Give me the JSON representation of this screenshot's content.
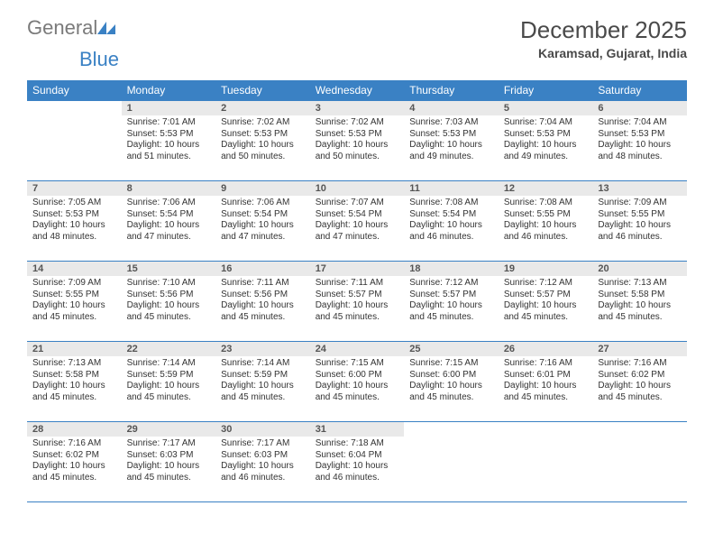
{
  "brand": {
    "word1": "General",
    "word2": "Blue",
    "logo_color": "#3a81c4",
    "word1_color": "#7a7a7a"
  },
  "title": "December 2025",
  "location": "Karamsad, Gujarat, India",
  "styling": {
    "background_color": "#ffffff",
    "header_bar_color": "#3a81c4",
    "header_text_color": "#ffffff",
    "daynum_bg": "#e9e9e9",
    "daynum_color": "#555555",
    "cell_border_color": "#3a81c4",
    "body_text_color": "#333333",
    "title_fontsize": 26,
    "location_fontsize": 14,
    "dayhead_fontsize": 12,
    "cell_fontsize": 10
  },
  "day_headers": [
    "Sunday",
    "Monday",
    "Tuesday",
    "Wednesday",
    "Thursday",
    "Friday",
    "Saturday"
  ],
  "weeks": [
    [
      {
        "n": "",
        "lines": [
          "",
          "",
          "",
          ""
        ]
      },
      {
        "n": "1",
        "lines": [
          "Sunrise: 7:01 AM",
          "Sunset: 5:53 PM",
          "Daylight: 10 hours",
          "and 51 minutes."
        ]
      },
      {
        "n": "2",
        "lines": [
          "Sunrise: 7:02 AM",
          "Sunset: 5:53 PM",
          "Daylight: 10 hours",
          "and 50 minutes."
        ]
      },
      {
        "n": "3",
        "lines": [
          "Sunrise: 7:02 AM",
          "Sunset: 5:53 PM",
          "Daylight: 10 hours",
          "and 50 minutes."
        ]
      },
      {
        "n": "4",
        "lines": [
          "Sunrise: 7:03 AM",
          "Sunset: 5:53 PM",
          "Daylight: 10 hours",
          "and 49 minutes."
        ]
      },
      {
        "n": "5",
        "lines": [
          "Sunrise: 7:04 AM",
          "Sunset: 5:53 PM",
          "Daylight: 10 hours",
          "and 49 minutes."
        ]
      },
      {
        "n": "6",
        "lines": [
          "Sunrise: 7:04 AM",
          "Sunset: 5:53 PM",
          "Daylight: 10 hours",
          "and 48 minutes."
        ]
      }
    ],
    [
      {
        "n": "7",
        "lines": [
          "Sunrise: 7:05 AM",
          "Sunset: 5:53 PM",
          "Daylight: 10 hours",
          "and 48 minutes."
        ]
      },
      {
        "n": "8",
        "lines": [
          "Sunrise: 7:06 AM",
          "Sunset: 5:54 PM",
          "Daylight: 10 hours",
          "and 47 minutes."
        ]
      },
      {
        "n": "9",
        "lines": [
          "Sunrise: 7:06 AM",
          "Sunset: 5:54 PM",
          "Daylight: 10 hours",
          "and 47 minutes."
        ]
      },
      {
        "n": "10",
        "lines": [
          "Sunrise: 7:07 AM",
          "Sunset: 5:54 PM",
          "Daylight: 10 hours",
          "and 47 minutes."
        ]
      },
      {
        "n": "11",
        "lines": [
          "Sunrise: 7:08 AM",
          "Sunset: 5:54 PM",
          "Daylight: 10 hours",
          "and 46 minutes."
        ]
      },
      {
        "n": "12",
        "lines": [
          "Sunrise: 7:08 AM",
          "Sunset: 5:55 PM",
          "Daylight: 10 hours",
          "and 46 minutes."
        ]
      },
      {
        "n": "13",
        "lines": [
          "Sunrise: 7:09 AM",
          "Sunset: 5:55 PM",
          "Daylight: 10 hours",
          "and 46 minutes."
        ]
      }
    ],
    [
      {
        "n": "14",
        "lines": [
          "Sunrise: 7:09 AM",
          "Sunset: 5:55 PM",
          "Daylight: 10 hours",
          "and 45 minutes."
        ]
      },
      {
        "n": "15",
        "lines": [
          "Sunrise: 7:10 AM",
          "Sunset: 5:56 PM",
          "Daylight: 10 hours",
          "and 45 minutes."
        ]
      },
      {
        "n": "16",
        "lines": [
          "Sunrise: 7:11 AM",
          "Sunset: 5:56 PM",
          "Daylight: 10 hours",
          "and 45 minutes."
        ]
      },
      {
        "n": "17",
        "lines": [
          "Sunrise: 7:11 AM",
          "Sunset: 5:57 PM",
          "Daylight: 10 hours",
          "and 45 minutes."
        ]
      },
      {
        "n": "18",
        "lines": [
          "Sunrise: 7:12 AM",
          "Sunset: 5:57 PM",
          "Daylight: 10 hours",
          "and 45 minutes."
        ]
      },
      {
        "n": "19",
        "lines": [
          "Sunrise: 7:12 AM",
          "Sunset: 5:57 PM",
          "Daylight: 10 hours",
          "and 45 minutes."
        ]
      },
      {
        "n": "20",
        "lines": [
          "Sunrise: 7:13 AM",
          "Sunset: 5:58 PM",
          "Daylight: 10 hours",
          "and 45 minutes."
        ]
      }
    ],
    [
      {
        "n": "21",
        "lines": [
          "Sunrise: 7:13 AM",
          "Sunset: 5:58 PM",
          "Daylight: 10 hours",
          "and 45 minutes."
        ]
      },
      {
        "n": "22",
        "lines": [
          "Sunrise: 7:14 AM",
          "Sunset: 5:59 PM",
          "Daylight: 10 hours",
          "and 45 minutes."
        ]
      },
      {
        "n": "23",
        "lines": [
          "Sunrise: 7:14 AM",
          "Sunset: 5:59 PM",
          "Daylight: 10 hours",
          "and 45 minutes."
        ]
      },
      {
        "n": "24",
        "lines": [
          "Sunrise: 7:15 AM",
          "Sunset: 6:00 PM",
          "Daylight: 10 hours",
          "and 45 minutes."
        ]
      },
      {
        "n": "25",
        "lines": [
          "Sunrise: 7:15 AM",
          "Sunset: 6:00 PM",
          "Daylight: 10 hours",
          "and 45 minutes."
        ]
      },
      {
        "n": "26",
        "lines": [
          "Sunrise: 7:16 AM",
          "Sunset: 6:01 PM",
          "Daylight: 10 hours",
          "and 45 minutes."
        ]
      },
      {
        "n": "27",
        "lines": [
          "Sunrise: 7:16 AM",
          "Sunset: 6:02 PM",
          "Daylight: 10 hours",
          "and 45 minutes."
        ]
      }
    ],
    [
      {
        "n": "28",
        "lines": [
          "Sunrise: 7:16 AM",
          "Sunset: 6:02 PM",
          "Daylight: 10 hours",
          "and 45 minutes."
        ]
      },
      {
        "n": "29",
        "lines": [
          "Sunrise: 7:17 AM",
          "Sunset: 6:03 PM",
          "Daylight: 10 hours",
          "and 45 minutes."
        ]
      },
      {
        "n": "30",
        "lines": [
          "Sunrise: 7:17 AM",
          "Sunset: 6:03 PM",
          "Daylight: 10 hours",
          "and 46 minutes."
        ]
      },
      {
        "n": "31",
        "lines": [
          "Sunrise: 7:18 AM",
          "Sunset: 6:04 PM",
          "Daylight: 10 hours",
          "and 46 minutes."
        ]
      },
      {
        "n": "",
        "lines": [
          "",
          "",
          "",
          ""
        ]
      },
      {
        "n": "",
        "lines": [
          "",
          "",
          "",
          ""
        ]
      },
      {
        "n": "",
        "lines": [
          "",
          "",
          "",
          ""
        ]
      }
    ]
  ]
}
